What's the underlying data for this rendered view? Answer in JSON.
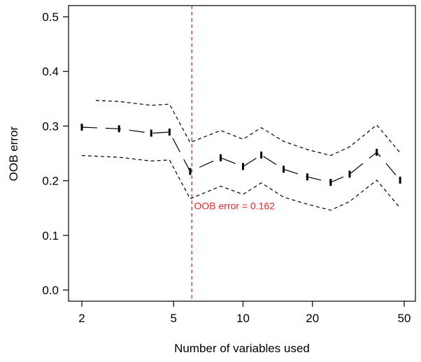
{
  "chart_data": {
    "type": "line",
    "xlabel": "Number of variables used",
    "ylabel": "OOB error",
    "x_scale": "log",
    "xlim": [
      1.85,
      55
    ],
    "ylim": [
      0,
      0.5
    ],
    "x_ticks": [
      2,
      5,
      10,
      20,
      50
    ],
    "y_ticks": [
      0.0,
      0.1,
      0.2,
      0.3,
      0.4,
      0.5
    ],
    "y_tick_labels": [
      "0.0",
      "0.1",
      "0.2",
      "0.3",
      "0.4",
      "0.5"
    ],
    "series": [
      {
        "role": "mean",
        "style": "dashed-long",
        "x": [
          2,
          2.9,
          4,
          4.8,
          5.9,
          8,
          10,
          12,
          15,
          19,
          24,
          29,
          38,
          48
        ],
        "y": [
          0.298,
          0.295,
          0.287,
          0.289,
          0.217,
          0.242,
          0.226,
          0.247,
          0.221,
          0.207,
          0.197,
          0.212,
          0.252,
          0.201
        ]
      },
      {
        "role": "upper",
        "style": "dashed-short",
        "x": [
          2.3,
          2.9,
          4,
          4.8,
          5.9,
          8,
          10,
          12,
          15,
          19,
          24,
          29,
          38,
          48
        ],
        "y": [
          0.347,
          0.345,
          0.338,
          0.34,
          0.27,
          0.292,
          0.276,
          0.297,
          0.272,
          0.257,
          0.246,
          0.262,
          0.302,
          0.251
        ]
      },
      {
        "role": "lower",
        "style": "dashed-short",
        "x": [
          2,
          2.9,
          4,
          4.8,
          5.9,
          8,
          10,
          12,
          15,
          19,
          24,
          29,
          38,
          48
        ],
        "y": [
          0.246,
          0.243,
          0.236,
          0.238,
          0.167,
          0.19,
          0.175,
          0.196,
          0.17,
          0.157,
          0.146,
          0.162,
          0.201,
          0.15
        ]
      }
    ],
    "vline": {
      "x": 6,
      "color": "#e8262b"
    },
    "annotation": {
      "text": "OOB error = 0.162",
      "x": 6.05,
      "y": 0.148,
      "color": "#e8262b"
    }
  }
}
